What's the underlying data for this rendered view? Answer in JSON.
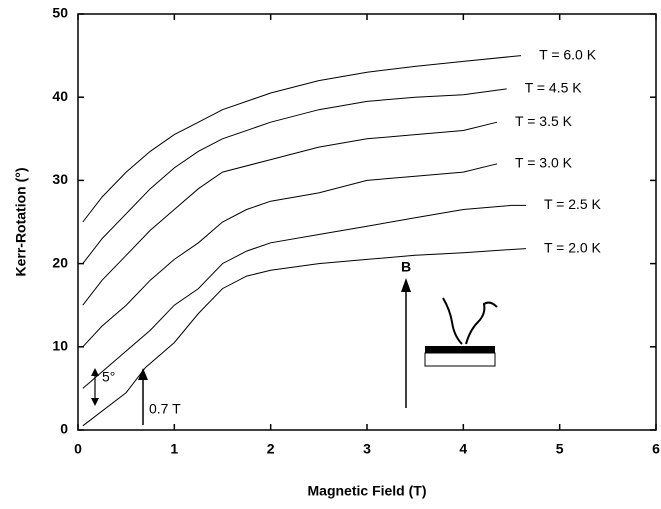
{
  "chart_data": {
    "type": "line",
    "x_label": "Magnetic Field (T)",
    "y_label": "Kerr-Rotation (°)",
    "xlim": [
      0,
      6
    ],
    "ylim": [
      0,
      50
    ],
    "xticks": [
      0,
      1,
      2,
      3,
      4,
      5,
      6
    ],
    "yticks": [
      0,
      10,
      20,
      30,
      40,
      50
    ],
    "series": [
      {
        "name": "T = 6.0 K",
        "color": "#000000",
        "x": [
          0.05,
          0.25,
          0.5,
          0.75,
          1,
          1.25,
          1.5,
          2,
          2.5,
          3,
          3.5,
          4,
          4.6
        ],
        "values": [
          25,
          28,
          31,
          33.5,
          35.5,
          37,
          38.5,
          40.5,
          42,
          43,
          43.7,
          44.3,
          45
        ]
      },
      {
        "name": "T = 4.5 K",
        "color": "#000000",
        "x": [
          0.05,
          0.25,
          0.5,
          0.75,
          1,
          1.25,
          1.5,
          2,
          2.5,
          3,
          3.5,
          4,
          4.45
        ],
        "values": [
          20,
          23,
          26,
          29,
          31.5,
          33.5,
          35,
          37,
          38.5,
          39.5,
          40,
          40.3,
          41
        ]
      },
      {
        "name": "T = 3.5 K",
        "color": "#000000",
        "x": [
          0.05,
          0.25,
          0.5,
          0.75,
          1,
          1.25,
          1.5,
          2,
          2.5,
          3,
          3.5,
          4,
          4.35
        ],
        "values": [
          15,
          18,
          21,
          24,
          26.5,
          29,
          31,
          32.5,
          34,
          35,
          35.5,
          36,
          37
        ]
      },
      {
        "name": "T = 3.0 K",
        "color": "#000000",
        "x": [
          0.05,
          0.25,
          0.5,
          0.75,
          1,
          1.25,
          1.5,
          1.75,
          2,
          2.5,
          3,
          3.5,
          4,
          4.35
        ],
        "values": [
          10,
          12.5,
          15,
          18,
          20.5,
          22.5,
          25,
          26.5,
          27.5,
          28.5,
          30,
          30.5,
          31,
          32
        ]
      },
      {
        "name": "T = 2.5 K",
        "color": "#000000",
        "x": [
          0.05,
          0.25,
          0.5,
          0.75,
          1,
          1.25,
          1.5,
          1.75,
          2,
          2.5,
          3,
          3.5,
          4,
          4.5,
          4.65
        ],
        "values": [
          5,
          7,
          9.5,
          12,
          15,
          17,
          20,
          21.5,
          22.5,
          23.5,
          24.5,
          25.5,
          26.5,
          27,
          27
        ]
      },
      {
        "name": "T = 2.0 K",
        "color": "#000000",
        "x": [
          0.05,
          0.5,
          0.7,
          1,
          1.25,
          1.5,
          1.75,
          2,
          2.5,
          3,
          3.5,
          4,
          4.5,
          4.65
        ],
        "values": [
          0.5,
          4.5,
          7.5,
          10.5,
          14,
          17,
          18.5,
          19.2,
          20,
          20.5,
          21,
          21.3,
          21.7,
          21.8
        ]
      }
    ],
    "annotations": [
      "5°",
      "0.7 T",
      "B"
    ]
  }
}
